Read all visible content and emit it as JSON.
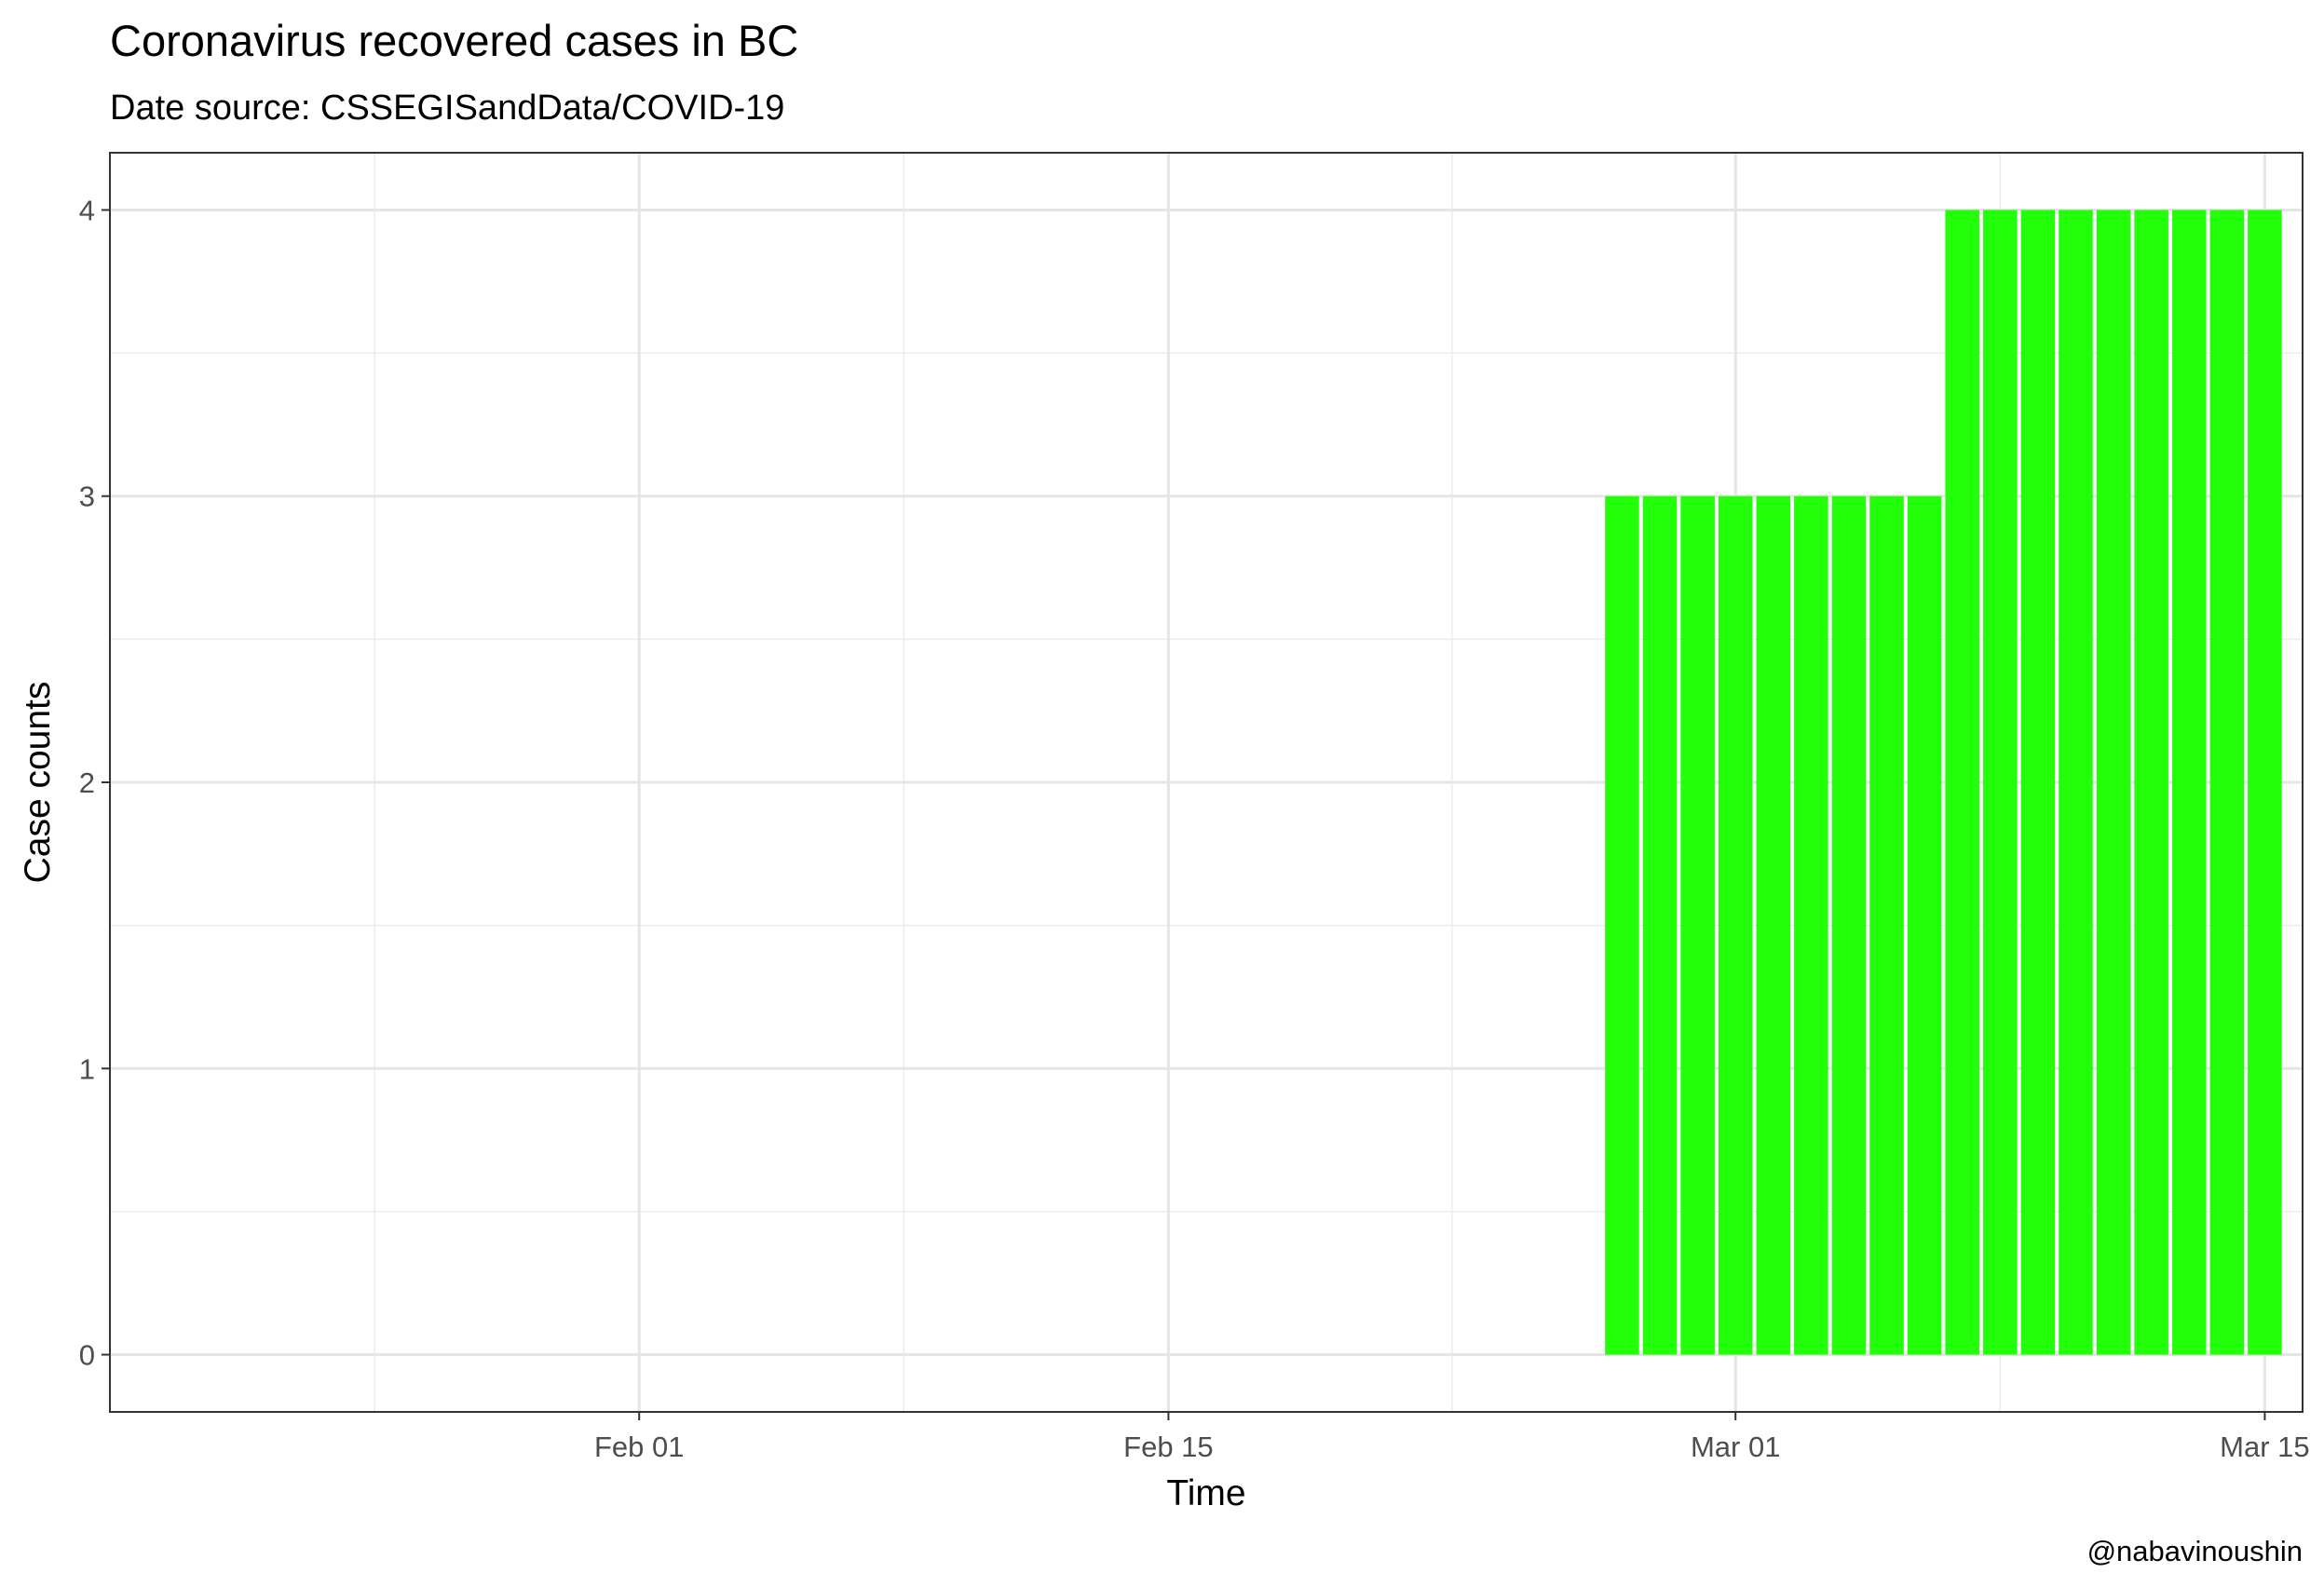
{
  "chart_data": {
    "type": "bar",
    "title": "Coronavirus recovered cases in BC",
    "subtitle": "Date source: CSSEGISandData/COVID-19",
    "xlabel": "Time",
    "ylabel": "Case counts",
    "caption": "@nabavinoushin",
    "x_ticks": [
      {
        "label": "Feb 01",
        "date": "2020-02-01"
      },
      {
        "label": "Feb 15",
        "date": "2020-02-15"
      },
      {
        "label": "Mar 01",
        "date": "2020-03-01"
      },
      {
        "label": "Mar 15",
        "date": "2020-03-15"
      }
    ],
    "y_ticks": [
      0,
      1,
      2,
      3,
      4
    ],
    "xlim": [
      "2020-01-18",
      "2020-03-16"
    ],
    "ylim": [
      -0.2,
      4.2
    ],
    "grid": true,
    "bar_color": "#22ff09",
    "series": [
      {
        "x": [
          "2020-02-27",
          "2020-02-28",
          "2020-02-29",
          "2020-03-01",
          "2020-03-02",
          "2020-03-03",
          "2020-03-04",
          "2020-03-05",
          "2020-03-06",
          "2020-03-07",
          "2020-03-08",
          "2020-03-09",
          "2020-03-10",
          "2020-03-11",
          "2020-03-12",
          "2020-03-13",
          "2020-03-14",
          "2020-03-15"
        ],
        "values": [
          3,
          3,
          3,
          3,
          3,
          3,
          3,
          3,
          3,
          4,
          4,
          4,
          4,
          4,
          4,
          4,
          4,
          4
        ]
      }
    ]
  }
}
